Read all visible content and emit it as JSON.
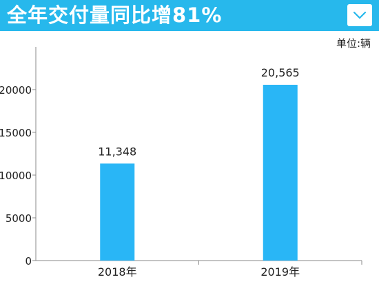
{
  "header": {
    "title": "全年交付量同比增81%",
    "background_color": "#27b8ec"
  },
  "menu_button": {
    "icon": "chevron-down-icon"
  },
  "unit_label": "单位:辆",
  "chart_data": {
    "type": "bar",
    "categories": [
      "2018年",
      "2019年"
    ],
    "values": [
      11348,
      20565
    ],
    "data_labels": [
      "11,348",
      "20,565"
    ],
    "title": "全年交付量同比增81%",
    "xlabel": "",
    "ylabel": "",
    "ylim": [
      0,
      25000
    ],
    "yticks": [
      0,
      5000,
      10000,
      15000,
      20000
    ],
    "bar_color": "#29b6f6",
    "grid": false,
    "legend": "none"
  }
}
